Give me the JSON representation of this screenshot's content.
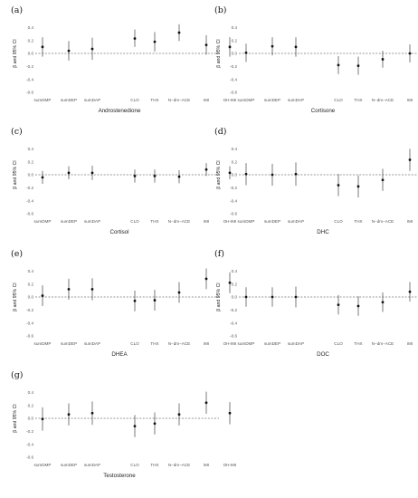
{
  "x_categories": [
    "sumDMP",
    "sumDEP",
    "sumDAP",
    "CLO",
    "THX",
    "N−dm−ACE",
    "IMI",
    "OH-IMI"
  ],
  "chart_data": [
    {
      "type": "scatter",
      "panel": "(a)",
      "title": "Androstenedione",
      "ylabel": "β and 95% CI",
      "ylim": [
        -0.6,
        0.6
      ],
      "yticks": [
        "0.4",
        "0.2",
        "0.0",
        "-0.2",
        "-0.4",
        "-0.6"
      ],
      "hline": 0,
      "grid": false,
      "points": [
        {
          "x": "sumDMP",
          "y": 0.1,
          "lo": -0.05,
          "hi": 0.25
        },
        {
          "x": "sumDEP",
          "y": 0.04,
          "lo": -0.11,
          "hi": 0.19
        },
        {
          "x": "sumDAP",
          "y": 0.07,
          "lo": -0.1,
          "hi": 0.24
        },
        {
          "x": "CLO",
          "y": 0.23,
          "lo": 0.1,
          "hi": 0.37
        },
        {
          "x": "THX",
          "y": 0.18,
          "lo": 0.03,
          "hi": 0.33
        },
        {
          "x": "N−dm−ACE",
          "y": 0.32,
          "lo": 0.19,
          "hi": 0.45
        },
        {
          "x": "IMI",
          "y": 0.13,
          "lo": -0.02,
          "hi": 0.28
        },
        {
          "x": "OH-IMI",
          "y": 0.1,
          "lo": -0.05,
          "hi": 0.25
        }
      ]
    },
    {
      "type": "scatter",
      "panel": "(b)",
      "title": "Cortisone",
      "ylabel": "β and 95% CI",
      "ylim": [
        -0.6,
        0.6
      ],
      "yticks": [
        "0.4",
        "0.2",
        "0.0",
        "-0.2",
        "-0.4",
        "-0.6"
      ],
      "hline": 0,
      "grid": false,
      "points": [
        {
          "x": "sumDMP",
          "y": 0.01,
          "lo": -0.13,
          "hi": 0.15
        },
        {
          "x": "sumDEP",
          "y": 0.11,
          "lo": -0.03,
          "hi": 0.25
        },
        {
          "x": "sumDAP",
          "y": 0.1,
          "lo": -0.05,
          "hi": 0.25
        },
        {
          "x": "CLO",
          "y": -0.18,
          "lo": -0.32,
          "hi": -0.04
        },
        {
          "x": "THX",
          "y": -0.19,
          "lo": -0.33,
          "hi": -0.05
        },
        {
          "x": "N−dm−ACE",
          "y": -0.09,
          "lo": -0.22,
          "hi": 0.04
        },
        {
          "x": "IMI",
          "y": 0.0,
          "lo": -0.14,
          "hi": 0.14
        },
        {
          "x": "OH-IMI",
          "y": 0.0,
          "lo": -0.14,
          "hi": 0.14
        }
      ]
    },
    {
      "type": "scatter",
      "panel": "(c)",
      "title": "Cortisol",
      "ylabel": "β and 95% CI",
      "ylim": [
        -0.6,
        0.6
      ],
      "yticks": [
        "0.4",
        "0.2",
        "0.0",
        "-0.2",
        "-0.4",
        "-0.6"
      ],
      "hline": 0,
      "grid": false,
      "points": [
        {
          "x": "sumDMP",
          "y": -0.04,
          "lo": -0.14,
          "hi": 0.06
        },
        {
          "x": "sumDEP",
          "y": 0.03,
          "lo": -0.07,
          "hi": 0.13
        },
        {
          "x": "sumDAP",
          "y": 0.03,
          "lo": -0.08,
          "hi": 0.14
        },
        {
          "x": "CLO",
          "y": -0.02,
          "lo": -0.12,
          "hi": 0.08
        },
        {
          "x": "THX",
          "y": -0.02,
          "lo": -0.12,
          "hi": 0.08
        },
        {
          "x": "N−dm−ACE",
          "y": -0.03,
          "lo": -0.13,
          "hi": 0.07
        },
        {
          "x": "IMI",
          "y": 0.08,
          "lo": -0.02,
          "hi": 0.18
        },
        {
          "x": "OH-IMI",
          "y": 0.03,
          "lo": -0.07,
          "hi": 0.13
        }
      ]
    },
    {
      "type": "scatter",
      "panel": "(d)",
      "title": "DHC",
      "ylabel": "β and 95% CI",
      "ylim": [
        -0.6,
        0.6
      ],
      "yticks": [
        "0.4",
        "0.2",
        "0.0",
        "-0.2",
        "-0.4",
        "-0.6"
      ],
      "hline": 0,
      "grid": false,
      "points": [
        {
          "x": "sumDMP",
          "y": 0.01,
          "lo": -0.16,
          "hi": 0.18
        },
        {
          "x": "sumDEP",
          "y": 0.0,
          "lo": -0.17,
          "hi": 0.17
        },
        {
          "x": "sumDAP",
          "y": 0.01,
          "lo": -0.17,
          "hi": 0.19
        },
        {
          "x": "CLO",
          "y": -0.16,
          "lo": -0.33,
          "hi": 0.01
        },
        {
          "x": "THX",
          "y": -0.18,
          "lo": -0.35,
          "hi": -0.01
        },
        {
          "x": "N−dm−ACE",
          "y": -0.08,
          "lo": -0.25,
          "hi": 0.09
        },
        {
          "x": "IMI",
          "y": 0.23,
          "lo": 0.06,
          "hi": 0.4
        },
        {
          "x": "OH-IMI",
          "y": 0.11,
          "lo": -0.06,
          "hi": 0.28
        }
      ]
    },
    {
      "type": "scatter",
      "panel": "(e)",
      "title": "DHEA",
      "ylabel": "β and 95% CI",
      "ylim": [
        -0.6,
        0.6
      ],
      "yticks": [
        "0.4",
        "0.2",
        "0.0",
        "-0.2",
        "-0.4",
        "-0.6"
      ],
      "hline": 0,
      "grid": false,
      "points": [
        {
          "x": "sumDMP",
          "y": 0.02,
          "lo": -0.14,
          "hi": 0.18
        },
        {
          "x": "sumDEP",
          "y": 0.12,
          "lo": -0.04,
          "hi": 0.28
        },
        {
          "x": "sumDAP",
          "y": 0.12,
          "lo": -0.05,
          "hi": 0.29
        },
        {
          "x": "CLO",
          "y": -0.06,
          "lo": -0.22,
          "hi": 0.1
        },
        {
          "x": "THX",
          "y": -0.05,
          "lo": -0.21,
          "hi": 0.11
        },
        {
          "x": "N−dm−ACE",
          "y": 0.07,
          "lo": -0.09,
          "hi": 0.23
        },
        {
          "x": "IMI",
          "y": 0.28,
          "lo": 0.12,
          "hi": 0.44
        },
        {
          "x": "OH-IMI",
          "y": 0.22,
          "lo": 0.06,
          "hi": 0.38
        }
      ]
    },
    {
      "type": "scatter",
      "panel": "(f)",
      "title": "DOC",
      "ylabel": "β and 95% CI",
      "ylim": [
        -0.6,
        0.6
      ],
      "yticks": [
        "0.4",
        "0.2",
        "0.0",
        "-0.2",
        "-0.4",
        "-0.6"
      ],
      "hline": 0,
      "grid": false,
      "points": [
        {
          "x": "sumDMP",
          "y": 0.0,
          "lo": -0.15,
          "hi": 0.15
        },
        {
          "x": "sumDEP",
          "y": 0.0,
          "lo": -0.15,
          "hi": 0.15
        },
        {
          "x": "sumDAP",
          "y": 0.0,
          "lo": -0.16,
          "hi": 0.16
        },
        {
          "x": "CLO",
          "y": -0.12,
          "lo": -0.27,
          "hi": 0.03
        },
        {
          "x": "THX",
          "y": -0.14,
          "lo": -0.29,
          "hi": 0.01
        },
        {
          "x": "N−dm−ACE",
          "y": -0.08,
          "lo": -0.23,
          "hi": 0.07
        },
        {
          "x": "IMI",
          "y": 0.08,
          "lo": -0.07,
          "hi": 0.23
        },
        {
          "x": "OH-IMI",
          "y": 0.08,
          "lo": -0.07,
          "hi": 0.23
        }
      ]
    },
    {
      "type": "scatter",
      "panel": "(g)",
      "title": "Testosterone",
      "ylabel": "β and 95% CI",
      "ylim": [
        -0.6,
        0.6
      ],
      "yticks": [
        "0.4",
        "0.2",
        "0.0",
        "-0.2",
        "-0.4",
        "-0.6"
      ],
      "hline": 0,
      "grid": false,
      "points": [
        {
          "x": "sumDMP",
          "y": -0.01,
          "lo": -0.19,
          "hi": 0.17
        },
        {
          "x": "sumDEP",
          "y": 0.06,
          "lo": -0.11,
          "hi": 0.23
        },
        {
          "x": "sumDAP",
          "y": 0.08,
          "lo": -0.1,
          "hi": 0.26
        },
        {
          "x": "CLO",
          "y": -0.12,
          "lo": -0.29,
          "hi": 0.05
        },
        {
          "x": "THX",
          "y": -0.08,
          "lo": -0.25,
          "hi": 0.09
        },
        {
          "x": "N−dm−ACE",
          "y": 0.06,
          "lo": -0.11,
          "hi": 0.23
        },
        {
          "x": "IMI",
          "y": 0.24,
          "lo": 0.07,
          "hi": 0.41
        },
        {
          "x": "OH-IMI",
          "y": 0.08,
          "lo": -0.09,
          "hi": 0.25
        }
      ]
    }
  ]
}
